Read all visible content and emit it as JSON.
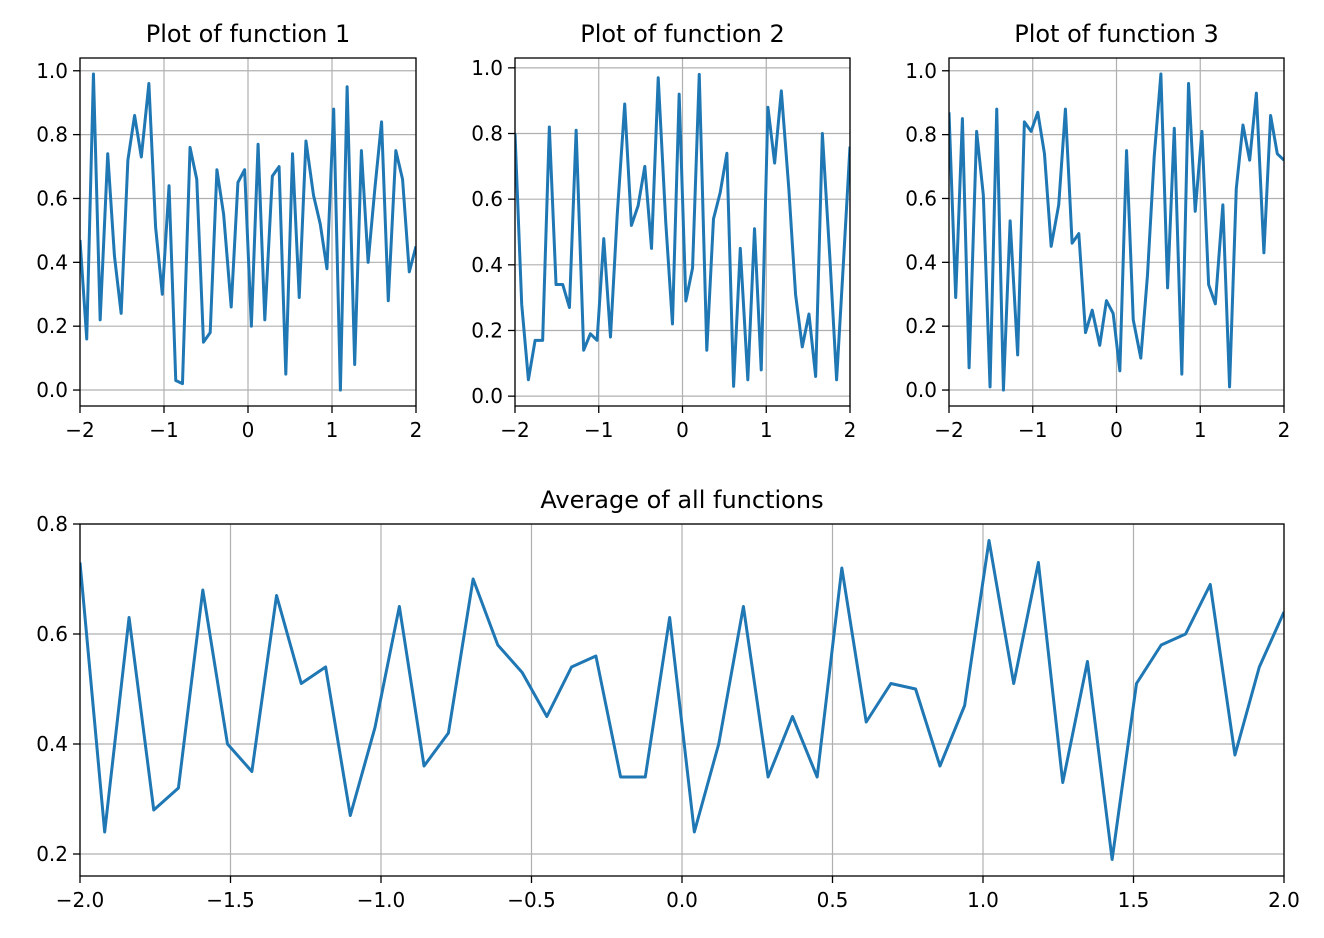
{
  "colors": {
    "series": "#1f77b4",
    "grid": "#b0b0b0",
    "axes": "#000000",
    "background": "#ffffff"
  },
  "chart_data": [
    {
      "type": "line",
      "title": "Plot of function 1",
      "xlabel": "",
      "ylabel": "",
      "xlim": [
        -2,
        2
      ],
      "ylim": [
        -0.05,
        1.04
      ],
      "grid": true,
      "xticks": [
        -2,
        -1,
        0,
        1,
        2
      ],
      "xtick_labels": [
        "−2",
        "−1",
        "0",
        "1",
        "2"
      ],
      "yticks": [
        0.0,
        0.2,
        0.4,
        0.6,
        0.8,
        1.0
      ],
      "ytick_labels": [
        "0.0",
        "0.2",
        "0.4",
        "0.6",
        "0.8",
        "1.0"
      ],
      "series": [
        {
          "x": [
            -2.0,
            -1.92,
            -1.84,
            -1.76,
            -1.67,
            -1.59,
            -1.51,
            -1.43,
            -1.35,
            -1.27,
            -1.18,
            -1.1,
            -1.02,
            -0.94,
            -0.86,
            -0.78,
            -0.69,
            -0.61,
            -0.53,
            -0.45,
            -0.37,
            -0.29,
            -0.2,
            -0.12,
            -0.04,
            0.04,
            0.12,
            0.2,
            0.29,
            0.37,
            0.45,
            0.53,
            0.61,
            0.69,
            0.78,
            0.86,
            0.94,
            1.02,
            1.1,
            1.18,
            1.27,
            1.35,
            1.43,
            1.51,
            1.59,
            1.67,
            1.76,
            1.84,
            1.92,
            2.0
          ],
          "values": [
            0.47,
            0.16,
            0.99,
            0.22,
            0.74,
            0.42,
            0.24,
            0.72,
            0.86,
            0.73,
            0.96,
            0.51,
            0.3,
            0.64,
            0.03,
            0.02,
            0.76,
            0.66,
            0.15,
            0.18,
            0.69,
            0.55,
            0.26,
            0.65,
            0.69,
            0.2,
            0.77,
            0.22,
            0.67,
            0.7,
            0.05,
            0.74,
            0.29,
            0.78,
            0.61,
            0.52,
            0.38,
            0.88,
            0.0,
            0.95,
            0.08,
            0.75,
            0.4,
            0.63,
            0.84,
            0.28,
            0.75,
            0.66,
            0.37,
            0.45
          ]
        }
      ]
    },
    {
      "type": "line",
      "title": "Plot of function 2",
      "xlabel": "",
      "ylabel": "",
      "xlim": [
        -2,
        2
      ],
      "ylim": [
        -0.03,
        1.03
      ],
      "grid": true,
      "xticks": [
        -2,
        -1,
        0,
        1,
        2
      ],
      "xtick_labels": [
        "−2",
        "−1",
        "0",
        "1",
        "2"
      ],
      "yticks": [
        0.0,
        0.2,
        0.4,
        0.6,
        0.8,
        1.0
      ],
      "ytick_labels": [
        "0.0",
        "0.2",
        "0.4",
        "0.6",
        "0.8",
        "1.0"
      ],
      "series": [
        {
          "x": [
            -2.0,
            -1.92,
            -1.84,
            -1.76,
            -1.67,
            -1.59,
            -1.51,
            -1.43,
            -1.35,
            -1.27,
            -1.18,
            -1.1,
            -1.02,
            -0.94,
            -0.86,
            -0.78,
            -0.69,
            -0.61,
            -0.53,
            -0.45,
            -0.37,
            -0.29,
            -0.2,
            -0.12,
            -0.04,
            0.04,
            0.12,
            0.2,
            0.29,
            0.37,
            0.45,
            0.53,
            0.61,
            0.69,
            0.78,
            0.86,
            0.94,
            1.02,
            1.1,
            1.18,
            1.27,
            1.35,
            1.43,
            1.51,
            1.59,
            1.67,
            1.76,
            1.84,
            1.92,
            2.0
          ],
          "values": [
            0.8,
            0.28,
            0.05,
            0.17,
            0.17,
            0.82,
            0.34,
            0.34,
            0.27,
            0.81,
            0.14,
            0.19,
            0.17,
            0.48,
            0.18,
            0.55,
            0.89,
            0.52,
            0.58,
            0.7,
            0.45,
            0.97,
            0.53,
            0.22,
            0.92,
            0.29,
            0.39,
            0.98,
            0.14,
            0.54,
            0.62,
            0.74,
            0.03,
            0.45,
            0.05,
            0.51,
            0.08,
            0.88,
            0.71,
            0.93,
            0.63,
            0.31,
            0.15,
            0.25,
            0.06,
            0.8,
            0.42,
            0.05,
            0.4,
            0.76
          ]
        }
      ]
    },
    {
      "type": "line",
      "title": "Plot of function 3",
      "xlabel": "",
      "ylabel": "",
      "xlim": [
        -2,
        2
      ],
      "ylim": [
        -0.05,
        1.04
      ],
      "grid": true,
      "xticks": [
        -2,
        -1,
        0,
        1,
        2
      ],
      "xtick_labels": [
        "−2",
        "−1",
        "0",
        "1",
        "2"
      ],
      "yticks": [
        0.0,
        0.2,
        0.4,
        0.6,
        0.8,
        1.0
      ],
      "ytick_labels": [
        "0.0",
        "0.2",
        "0.4",
        "0.6",
        "0.8",
        "1.0"
      ],
      "series": [
        {
          "x": [
            -2.0,
            -1.92,
            -1.84,
            -1.76,
            -1.67,
            -1.59,
            -1.51,
            -1.43,
            -1.35,
            -1.27,
            -1.18,
            -1.1,
            -1.02,
            -0.94,
            -0.86,
            -0.78,
            -0.69,
            -0.61,
            -0.53,
            -0.45,
            -0.37,
            -0.29,
            -0.2,
            -0.12,
            -0.04,
            0.04,
            0.12,
            0.2,
            0.29,
            0.37,
            0.45,
            0.53,
            0.61,
            0.69,
            0.78,
            0.86,
            0.94,
            1.02,
            1.1,
            1.18,
            1.27,
            1.35,
            1.43,
            1.51,
            1.59,
            1.67,
            1.76,
            1.84,
            1.92,
            2.0
          ],
          "values": [
            0.87,
            0.29,
            0.85,
            0.07,
            0.81,
            0.61,
            0.01,
            0.88,
            0.0,
            0.53,
            0.11,
            0.84,
            0.81,
            0.87,
            0.74,
            0.45,
            0.58,
            0.88,
            0.46,
            0.49,
            0.18,
            0.25,
            0.14,
            0.28,
            0.24,
            0.06,
            0.75,
            0.22,
            0.1,
            0.36,
            0.73,
            0.99,
            0.32,
            0.82,
            0.05,
            0.96,
            0.56,
            0.81,
            0.33,
            0.27,
            0.58,
            0.01,
            0.63,
            0.83,
            0.72,
            0.93,
            0.43,
            0.86,
            0.74,
            0.72
          ]
        }
      ]
    },
    {
      "type": "line",
      "title": "Average of all functions",
      "xlabel": "",
      "ylabel": "",
      "xlim": [
        -2.0,
        2.0
      ],
      "ylim": [
        0.16,
        0.8
      ],
      "grid": true,
      "xticks": [
        -2.0,
        -1.5,
        -1.0,
        -0.5,
        0.0,
        0.5,
        1.0,
        1.5,
        2.0
      ],
      "xtick_labels": [
        "−2.0",
        "−1.5",
        "−1.0",
        "−0.5",
        "0.0",
        "0.5",
        "1.0",
        "1.5",
        "2.0"
      ],
      "yticks": [
        0.2,
        0.4,
        0.6,
        0.8
      ],
      "ytick_labels": [
        "0.2",
        "0.4",
        "0.6",
        "0.8"
      ],
      "series": [
        {
          "x": [
            -2.0,
            -1.918,
            -1.837,
            -1.755,
            -1.673,
            -1.592,
            -1.51,
            -1.429,
            -1.347,
            -1.265,
            -1.184,
            -1.102,
            -1.02,
            -0.939,
            -0.857,
            -0.776,
            -0.694,
            -0.612,
            -0.531,
            -0.449,
            -0.367,
            -0.286,
            -0.204,
            -0.122,
            -0.041,
            0.041,
            0.122,
            0.204,
            0.286,
            0.367,
            0.449,
            0.531,
            0.612,
            0.694,
            0.776,
            0.857,
            0.939,
            1.02,
            1.102,
            1.184,
            1.265,
            1.347,
            1.429,
            1.51,
            1.592,
            1.673,
            1.755,
            1.837,
            1.918,
            2.0
          ],
          "values": [
            0.73,
            0.24,
            0.63,
            0.28,
            0.32,
            0.68,
            0.4,
            0.35,
            0.67,
            0.51,
            0.54,
            0.27,
            0.43,
            0.65,
            0.36,
            0.42,
            0.7,
            0.58,
            0.53,
            0.45,
            0.54,
            0.56,
            0.34,
            0.34,
            0.63,
            0.24,
            0.4,
            0.65,
            0.34,
            0.45,
            0.34,
            0.72,
            0.44,
            0.51,
            0.5,
            0.36,
            0.47,
            0.77,
            0.51,
            0.73,
            0.33,
            0.55,
            0.19,
            0.51,
            0.58,
            0.6,
            0.69,
            0.38,
            0.54,
            0.64
          ]
        }
      ]
    }
  ]
}
